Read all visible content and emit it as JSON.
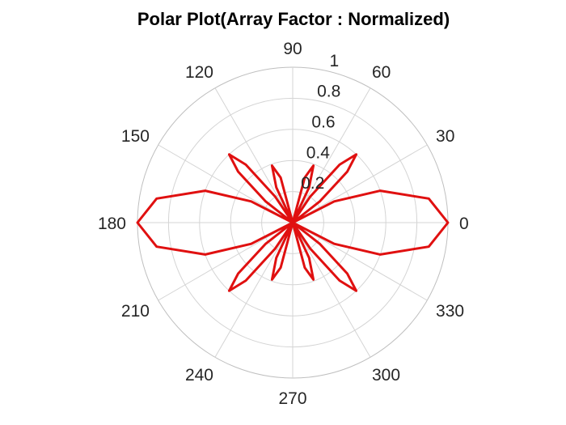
{
  "chart_data": {
    "type": "line",
    "coordinate_system": "polar",
    "title": "Polar Plot(Array Factor : Normalized)",
    "theta_unit": "degrees",
    "r_range": [
      0,
      1
    ],
    "r_ticks": [
      0.2,
      0.4,
      0.6,
      0.8,
      1
    ],
    "r_tick_labels": [
      "0.2",
      "0.4",
      "0.6",
      "0.8",
      "1"
    ],
    "theta_ticks": [
      0,
      30,
      60,
      90,
      120,
      150,
      180,
      210,
      240,
      270,
      300,
      330
    ],
    "theta_tick_labels": [
      "0",
      "30",
      "60",
      "90",
      "120",
      "150",
      "180",
      "210",
      "240",
      "270",
      "300",
      "330"
    ],
    "grid": true,
    "series": [
      {
        "color": "#e01010",
        "points": [
          {
            "theta": 0,
            "r": 1.0
          },
          {
            "theta": 10,
            "r": 0.89
          },
          {
            "theta": 20,
            "r": 0.6
          },
          {
            "theta": 27,
            "r": 0.3
          },
          {
            "theta": 33,
            "r": 0.0
          },
          {
            "theta": 38,
            "r": 0.22
          },
          {
            "theta": 43,
            "r": 0.48
          },
          {
            "theta": 47,
            "r": 0.6
          },
          {
            "theta": 51,
            "r": 0.48
          },
          {
            "theta": 56,
            "r": 0.2
          },
          {
            "theta": 60,
            "r": 0.0
          },
          {
            "theta": 65,
            "r": 0.25
          },
          {
            "theta": 70,
            "r": 0.39
          },
          {
            "theta": 75,
            "r": 0.3
          },
          {
            "theta": 80,
            "r": 0.0
          },
          {
            "theta": 100,
            "r": 0.0
          },
          {
            "theta": 105,
            "r": 0.3
          },
          {
            "theta": 110,
            "r": 0.39
          },
          {
            "theta": 115,
            "r": 0.25
          },
          {
            "theta": 120,
            "r": 0.0
          },
          {
            "theta": 124,
            "r": 0.2
          },
          {
            "theta": 129,
            "r": 0.48
          },
          {
            "theta": 133,
            "r": 0.6
          },
          {
            "theta": 137,
            "r": 0.48
          },
          {
            "theta": 142,
            "r": 0.22
          },
          {
            "theta": 147,
            "r": 0.0
          },
          {
            "theta": 153,
            "r": 0.3
          },
          {
            "theta": 160,
            "r": 0.6
          },
          {
            "theta": 170,
            "r": 0.89
          },
          {
            "theta": 180,
            "r": 1.0
          }
        ]
      }
    ]
  }
}
